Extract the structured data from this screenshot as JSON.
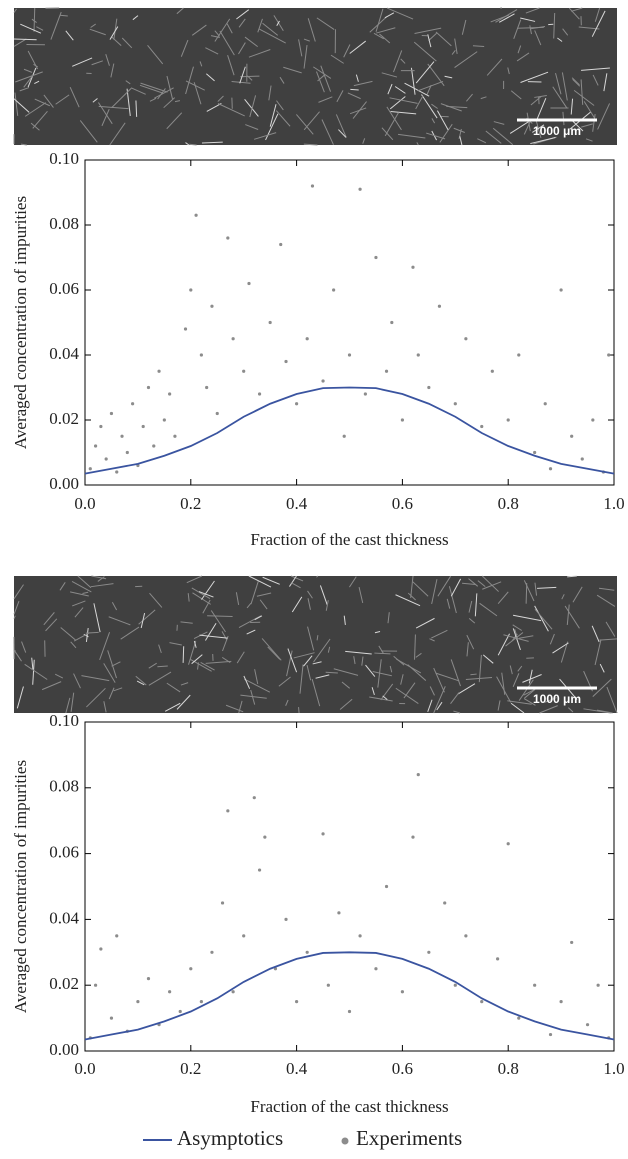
{
  "chart_data": [
    {
      "type": "scatter",
      "image_scale_bar": "1000 μm",
      "xlabel": "Fraction of the cast thickness",
      "ylabel": "Averaged concentration of impurities",
      "xlim": [
        0,
        1
      ],
      "ylim": [
        0,
        0.1
      ],
      "xticks": [
        {
          "value": 0,
          "label": "0.0"
        },
        0.2,
        0.4,
        0.6,
        0.8,
        {
          "value": 1,
          "label": "1.0"
        }
      ],
      "yticks": [
        {
          "value": 0,
          "label": "0.00"
        },
        0.02,
        0.04,
        0.06,
        0.08,
        {
          "value": 0.1,
          "label": "0.10"
        }
      ],
      "series": [
        {
          "style": "points",
          "color": "#8c8c8c",
          "x": [
            0.01,
            0.02,
            0.03,
            0.04,
            0.05,
            0.06,
            0.07,
            0.08,
            0.09,
            0.1,
            0.11,
            0.12,
            0.13,
            0.14,
            0.15,
            0.16,
            0.17,
            0.19,
            0.2,
            0.21,
            0.22,
            0.23,
            0.24,
            0.25,
            0.27,
            0.28,
            0.3,
            0.31,
            0.33,
            0.35,
            0.37,
            0.38,
            0.4,
            0.42,
            0.43,
            0.45,
            0.47,
            0.49,
            0.5,
            0.52,
            0.53,
            0.55,
            0.57,
            0.58,
            0.6,
            0.62,
            0.63,
            0.65,
            0.67,
            0.7,
            0.72,
            0.75,
            0.77,
            0.8,
            0.82,
            0.85,
            0.87,
            0.88,
            0.9,
            0.92,
            0.94,
            0.96,
            0.98,
            0.99
          ],
          "values": [
            0.005,
            0.012,
            0.018,
            0.008,
            0.022,
            0.004,
            0.015,
            0.01,
            0.025,
            0.006,
            0.018,
            0.03,
            0.012,
            0.035,
            0.02,
            0.028,
            0.015,
            0.048,
            0.06,
            0.083,
            0.04,
            0.03,
            0.055,
            0.022,
            0.076,
            0.045,
            0.035,
            0.062,
            0.028,
            0.05,
            0.074,
            0.038,
            0.025,
            0.045,
            0.092,
            0.032,
            0.06,
            0.015,
            0.04,
            0.091,
            0.028,
            0.07,
            0.035,
            0.05,
            0.02,
            0.067,
            0.04,
            0.03,
            0.055,
            0.025,
            0.045,
            0.018,
            0.035,
            0.02,
            0.04,
            0.01,
            0.025,
            0.005,
            0.06,
            0.015,
            0.008,
            0.02,
            0.004,
            0.04
          ]
        },
        {
          "style": "line",
          "color": "#3a54a0",
          "x": [
            0,
            0.05,
            0.1,
            0.15,
            0.2,
            0.25,
            0.3,
            0.35,
            0.4,
            0.45,
            0.5,
            0.55,
            0.6,
            0.65,
            0.7,
            0.75,
            0.8,
            0.85,
            0.9,
            0.95,
            1
          ],
          "values": [
            0.0035,
            0.005,
            0.0065,
            0.009,
            0.012,
            0.016,
            0.021,
            0.025,
            0.028,
            0.0298,
            0.03,
            0.0298,
            0.028,
            0.025,
            0.021,
            0.016,
            0.012,
            0.009,
            0.0065,
            0.005,
            0.0035
          ]
        }
      ]
    },
    {
      "type": "scatter",
      "image_scale_bar": "1000 μm",
      "xlabel": "Fraction of the cast thickness",
      "ylabel": "Averaged concentration of impurities",
      "xlim": [
        0,
        1
      ],
      "ylim": [
        0,
        0.1
      ],
      "xticks": [
        {
          "value": 0,
          "label": "0.0"
        },
        0.2,
        0.4,
        0.6,
        0.8,
        {
          "value": 1,
          "label": "1.0"
        }
      ],
      "yticks": [
        {
          "value": 0,
          "label": "0.00"
        },
        0.02,
        0.04,
        0.06,
        0.08,
        {
          "value": 0.1,
          "label": "0.10"
        }
      ],
      "series": [
        {
          "name": "Experiments",
          "style": "points",
          "color": "#8c8c8c",
          "x": [
            0.01,
            0.02,
            0.03,
            0.05,
            0.06,
            0.08,
            0.1,
            0.12,
            0.14,
            0.16,
            0.18,
            0.2,
            0.22,
            0.24,
            0.26,
            0.27,
            0.28,
            0.3,
            0.32,
            0.33,
            0.34,
            0.36,
            0.38,
            0.4,
            0.42,
            0.45,
            0.46,
            0.48,
            0.5,
            0.52,
            0.55,
            0.57,
            0.6,
            0.62,
            0.63,
            0.65,
            0.68,
            0.7,
            0.72,
            0.75,
            0.78,
            0.8,
            0.82,
            0.85,
            0.88,
            0.9,
            0.92,
            0.95,
            0.97,
            0.99
          ],
          "values": [
            0.004,
            0.02,
            0.031,
            0.01,
            0.035,
            0.006,
            0.015,
            0.022,
            0.008,
            0.018,
            0.012,
            0.025,
            0.015,
            0.03,
            0.045,
            0.073,
            0.018,
            0.035,
            0.077,
            0.055,
            0.065,
            0.025,
            0.04,
            0.015,
            0.03,
            0.066,
            0.02,
            0.042,
            0.012,
            0.035,
            0.025,
            0.05,
            0.018,
            0.065,
            0.084,
            0.03,
            0.045,
            0.02,
            0.035,
            0.015,
            0.028,
            0.063,
            0.01,
            0.02,
            0.005,
            0.015,
            0.033,
            0.008,
            0.02,
            0.004
          ]
        },
        {
          "name": "Asymptotics",
          "style": "line",
          "color": "#3a54a0",
          "x": [
            0,
            0.05,
            0.1,
            0.15,
            0.2,
            0.25,
            0.3,
            0.35,
            0.4,
            0.45,
            0.5,
            0.55,
            0.6,
            0.65,
            0.7,
            0.75,
            0.8,
            0.85,
            0.9,
            0.95,
            1
          ],
          "values": [
            0.0035,
            0.005,
            0.0065,
            0.009,
            0.012,
            0.016,
            0.021,
            0.025,
            0.028,
            0.0298,
            0.03,
            0.0298,
            0.028,
            0.025,
            0.021,
            0.016,
            0.012,
            0.009,
            0.0065,
            0.005,
            0.0035
          ]
        }
      ]
    }
  ]
}
